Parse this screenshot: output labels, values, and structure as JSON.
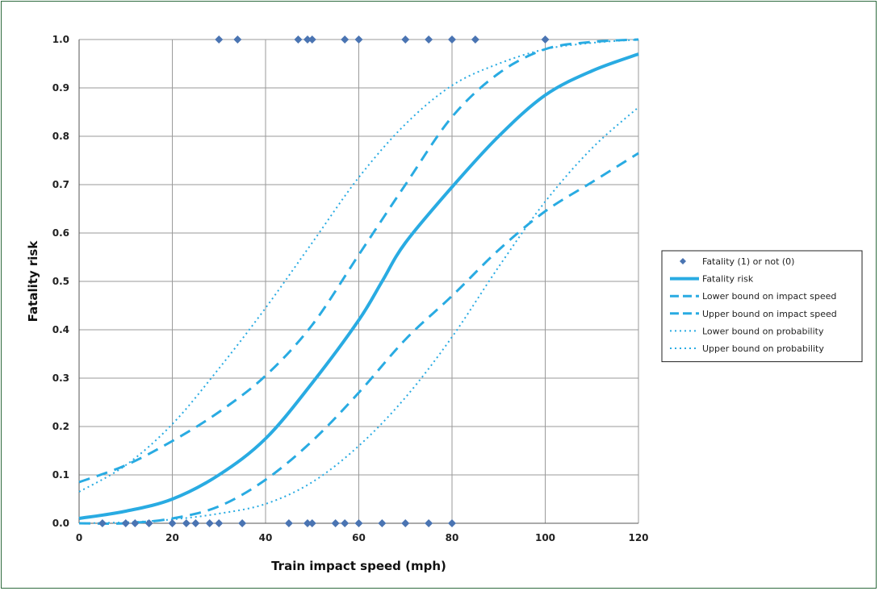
{
  "chart_data": {
    "type": "scatter",
    "xlabel": "Train impact speed (mph)",
    "ylabel": "Fatality risk",
    "xlim": [
      0,
      120
    ],
    "ylim": [
      0,
      1
    ],
    "x_ticks": [
      "0",
      "20",
      "40",
      "60",
      "80",
      "100",
      "120"
    ],
    "y_ticks": [
      "0.0",
      "0.1",
      "0.2",
      "0.3",
      "0.4",
      "0.5",
      "0.6",
      "0.7",
      "0.8",
      "0.9",
      "1.0"
    ],
    "grid": "vertical and horizontal",
    "legend_position": "right",
    "colors": {
      "series": "#29ABE2",
      "points": "#4A74B2"
    },
    "series": [
      {
        "name": "Fatality (1) or not (0)",
        "style": "diamond-marker",
        "points": [
          [
            30,
            1
          ],
          [
            34,
            1
          ],
          [
            47,
            1
          ],
          [
            49,
            1
          ],
          [
            50,
            1
          ],
          [
            57,
            1
          ],
          [
            60,
            1
          ],
          [
            70,
            1
          ],
          [
            75,
            1
          ],
          [
            80,
            1
          ],
          [
            85,
            1
          ],
          [
            100,
            1
          ],
          [
            5,
            0
          ],
          [
            10,
            0
          ],
          [
            12,
            0
          ],
          [
            15,
            0
          ],
          [
            20,
            0
          ],
          [
            23,
            0
          ],
          [
            25,
            0
          ],
          [
            28,
            0
          ],
          [
            30,
            0
          ],
          [
            35,
            0
          ],
          [
            45,
            0
          ],
          [
            49,
            0
          ],
          [
            50,
            0
          ],
          [
            55,
            0
          ],
          [
            57,
            0
          ],
          [
            60,
            0
          ],
          [
            65,
            0
          ],
          [
            70,
            0
          ],
          [
            75,
            0
          ],
          [
            80,
            0
          ]
        ]
      },
      {
        "name": "Fatality risk",
        "style": "solid",
        "points": [
          [
            0,
            0.01
          ],
          [
            10,
            0.025
          ],
          [
            20,
            0.05
          ],
          [
            30,
            0.1
          ],
          [
            40,
            0.175
          ],
          [
            50,
            0.29
          ],
          [
            60,
            0.42
          ],
          [
            65,
            0.5
          ],
          [
            70,
            0.58
          ],
          [
            80,
            0.695
          ],
          [
            90,
            0.8
          ],
          [
            100,
            0.885
          ],
          [
            110,
            0.935
          ],
          [
            120,
            0.97
          ]
        ]
      },
      {
        "name": "Lower bound on impact speed",
        "style": "dashed",
        "points": [
          [
            0,
            0.085
          ],
          [
            10,
            0.12
          ],
          [
            20,
            0.17
          ],
          [
            30,
            0.23
          ],
          [
            40,
            0.305
          ],
          [
            50,
            0.41
          ],
          [
            60,
            0.555
          ],
          [
            70,
            0.7
          ],
          [
            80,
            0.84
          ],
          [
            90,
            0.93
          ],
          [
            100,
            0.98
          ],
          [
            110,
            0.995
          ],
          [
            120,
            1.0
          ]
        ]
      },
      {
        "name": "Upper bound on impact speed",
        "style": "dashed",
        "points": [
          [
            0,
            0.0
          ],
          [
            10,
            0.0
          ],
          [
            20,
            0.01
          ],
          [
            30,
            0.035
          ],
          [
            40,
            0.09
          ],
          [
            50,
            0.17
          ],
          [
            60,
            0.27
          ],
          [
            70,
            0.38
          ],
          [
            80,
            0.47
          ],
          [
            90,
            0.565
          ],
          [
            100,
            0.645
          ],
          [
            110,
            0.705
          ],
          [
            120,
            0.765
          ]
        ]
      },
      {
        "name": "Lower bound on probability",
        "style": "dotted",
        "points": [
          [
            0,
            0.065
          ],
          [
            10,
            0.12
          ],
          [
            20,
            0.205
          ],
          [
            30,
            0.32
          ],
          [
            40,
            0.445
          ],
          [
            50,
            0.58
          ],
          [
            60,
            0.715
          ],
          [
            70,
            0.825
          ],
          [
            80,
            0.905
          ],
          [
            90,
            0.95
          ],
          [
            100,
            0.98
          ],
          [
            110,
            0.993
          ],
          [
            120,
            1.0
          ]
        ]
      },
      {
        "name": "Upper bound on probability",
        "style": "dotted",
        "points": [
          [
            0,
            0.0
          ],
          [
            10,
            0.002
          ],
          [
            20,
            0.008
          ],
          [
            30,
            0.02
          ],
          [
            40,
            0.04
          ],
          [
            50,
            0.085
          ],
          [
            60,
            0.16
          ],
          [
            70,
            0.26
          ],
          [
            80,
            0.385
          ],
          [
            90,
            0.53
          ],
          [
            100,
            0.665
          ],
          [
            110,
            0.775
          ],
          [
            120,
            0.86
          ]
        ]
      }
    ]
  }
}
